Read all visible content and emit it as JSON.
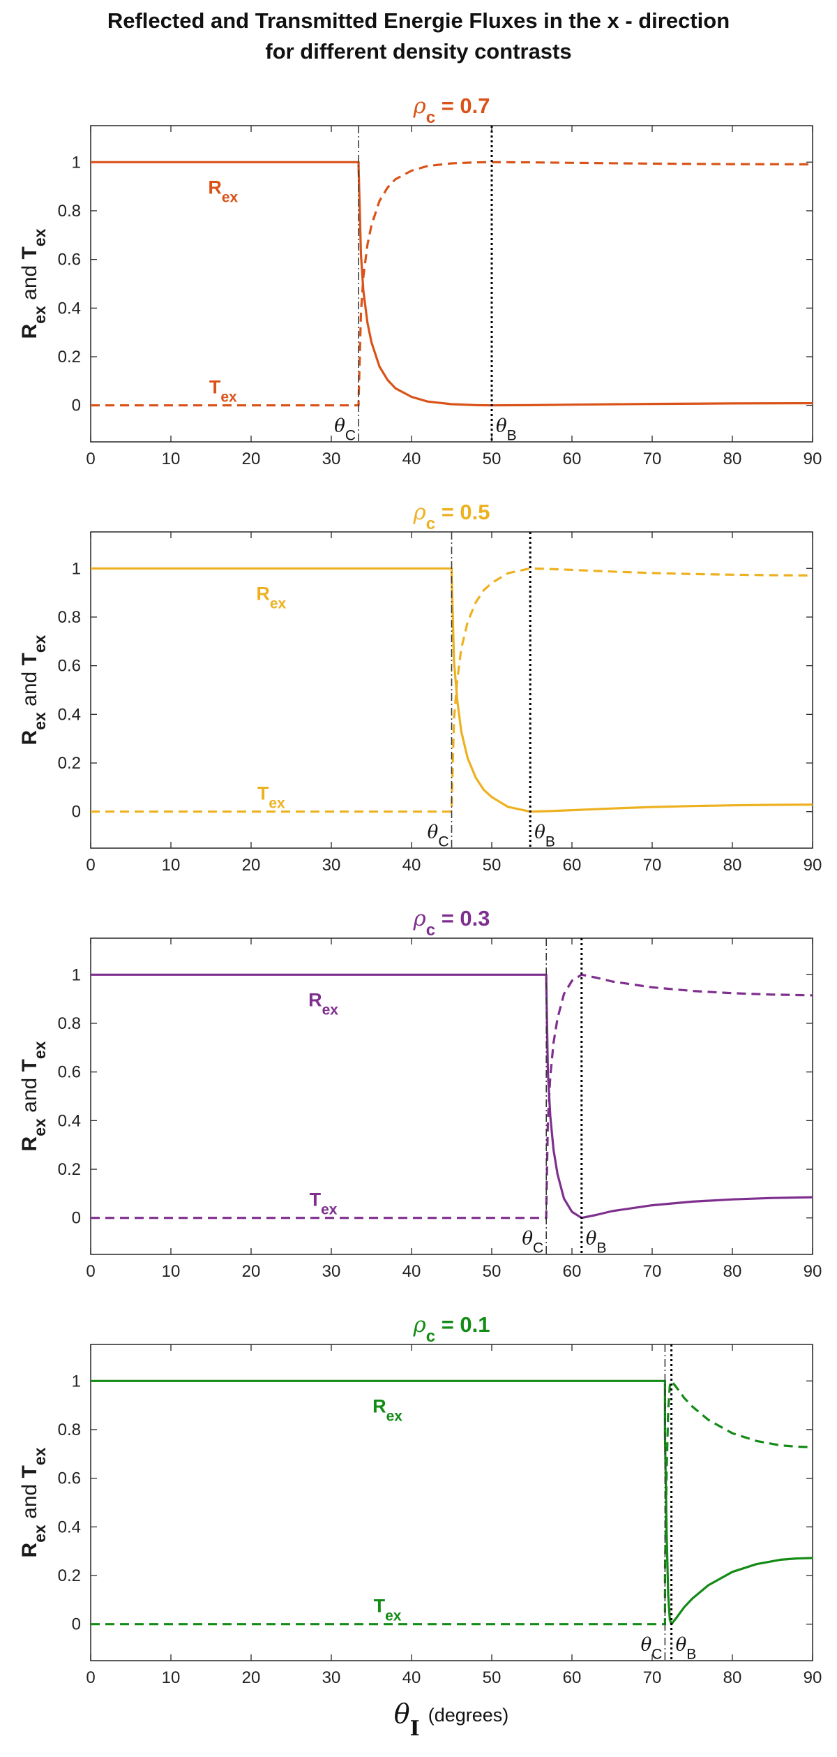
{
  "title_line1": "Reflected and Transmitted Energie Fluxes in the x - direction",
  "title_line2": "for different density contrasts",
  "xlabel_symbol": "θ",
  "xlabel_sub": "I",
  "xlabel_unit": "(degrees)",
  "colors": {
    "axis": "#262626",
    "critical_line": "#3a3a3a",
    "brewster_line": "#000000"
  },
  "chart_data": [
    {
      "type": "line",
      "title_prefix": "ρ",
      "title_sub": "c",
      "title_suffix": " = 0.7",
      "color": "#D95319",
      "xlim": [
        0,
        90
      ],
      "ylim": [
        -0.15,
        1.15
      ],
      "x_ticks": [
        0,
        10,
        20,
        30,
        40,
        50,
        60,
        70,
        80,
        90
      ],
      "y_ticks": [
        0,
        0.2,
        0.4,
        0.6,
        0.8,
        1
      ],
      "y_tick_labels": [
        "0",
        "0.2",
        "0.4",
        "0.6",
        "0.8",
        "1"
      ],
      "ylabel": {
        "r": "R",
        "r_sub": "ex",
        "mid": " and ",
        "t": "T",
        "t_sub": "ex"
      },
      "theta_c": 33.4,
      "theta_b": 50.0,
      "theta_c_label": {
        "sym": "θ",
        "sub": "C"
      },
      "theta_b_label": {
        "sym": "θ",
        "sub": "B"
      },
      "R_label": {
        "text": "R",
        "sub": "ex",
        "x": 16.5,
        "y": 0.87
      },
      "T_label": {
        "text": "T",
        "sub": "ex",
        "x": 16.5,
        "y": 0.05
      },
      "series": [
        {
          "name": "R_ex",
          "style": "solid",
          "x": [
            0,
            33.4,
            33.4,
            33.7,
            34.0,
            34.5,
            35,
            36,
            37,
            38,
            40,
            42,
            45,
            48,
            50,
            55,
            60,
            70,
            80,
            90
          ],
          "y": [
            1,
            1,
            0.98,
            0.62,
            0.47,
            0.34,
            0.26,
            0.16,
            0.105,
            0.07,
            0.035,
            0.016,
            0.005,
            0.001,
            0,
            0.001,
            0.003,
            0.006,
            0.008,
            0.009
          ]
        },
        {
          "name": "T_ex",
          "style": "dashed",
          "x": [
            0,
            33.4,
            33.4,
            33.7,
            34.0,
            34.5,
            35,
            36,
            37,
            38,
            40,
            42,
            45,
            48,
            50,
            55,
            60,
            70,
            80,
            90
          ],
          "y": [
            0,
            0,
            0.02,
            0.38,
            0.53,
            0.66,
            0.74,
            0.84,
            0.895,
            0.93,
            0.965,
            0.984,
            0.995,
            0.999,
            1,
            0.999,
            0.997,
            0.994,
            0.992,
            0.991
          ]
        }
      ]
    },
    {
      "type": "line",
      "title_prefix": "ρ",
      "title_sub": "c",
      "title_suffix": " = 0.5",
      "color": "#EDB120",
      "xlim": [
        0,
        90
      ],
      "ylim": [
        -0.15,
        1.15
      ],
      "x_ticks": [
        0,
        10,
        20,
        30,
        40,
        50,
        60,
        70,
        80,
        90
      ],
      "y_ticks": [
        0,
        0.2,
        0.4,
        0.6,
        0.8,
        1
      ],
      "y_tick_labels": [
        "0",
        "0.2",
        "0.4",
        "0.6",
        "0.8",
        "1"
      ],
      "ylabel": {
        "r": "R",
        "r_sub": "ex",
        "mid": " and ",
        "t": "T",
        "t_sub": "ex"
      },
      "theta_c": 45.0,
      "theta_b": 54.8,
      "theta_c_label": {
        "sym": "θ",
        "sub": "C"
      },
      "theta_b_label": {
        "sym": "θ",
        "sub": "B"
      },
      "R_label": {
        "text": "R",
        "sub": "ex",
        "x": 22.5,
        "y": 0.87
      },
      "T_label": {
        "text": "T",
        "sub": "ex",
        "x": 22.5,
        "y": 0.05
      },
      "series": [
        {
          "name": "R_ex",
          "style": "solid",
          "x": [
            0,
            45.0,
            45.0,
            45.3,
            45.7,
            46.2,
            47,
            48,
            49,
            50,
            52,
            54.8,
            57,
            60,
            65,
            70,
            75,
            80,
            85,
            90
          ],
          "y": [
            1,
            1,
            0.98,
            0.62,
            0.46,
            0.33,
            0.22,
            0.14,
            0.09,
            0.06,
            0.02,
            0,
            0.002,
            0.006,
            0.013,
            0.019,
            0.023,
            0.026,
            0.028,
            0.029
          ]
        },
        {
          "name": "T_ex",
          "style": "dashed",
          "x": [
            0,
            45.0,
            45.0,
            45.3,
            45.7,
            46.2,
            47,
            48,
            49,
            50,
            52,
            54.8,
            57,
            60,
            65,
            70,
            75,
            80,
            85,
            90
          ],
          "y": [
            0,
            0,
            0.02,
            0.38,
            0.54,
            0.67,
            0.78,
            0.86,
            0.91,
            0.94,
            0.98,
            1,
            0.998,
            0.994,
            0.987,
            0.981,
            0.977,
            0.974,
            0.972,
            0.971
          ]
        }
      ]
    },
    {
      "type": "line",
      "title_prefix": "ρ",
      "title_sub": "c",
      "title_suffix": " = 0.3",
      "color": "#7E2F8E",
      "xlim": [
        0,
        90
      ],
      "ylim": [
        -0.15,
        1.15
      ],
      "x_ticks": [
        0,
        10,
        20,
        30,
        40,
        50,
        60,
        70,
        80,
        90
      ],
      "y_ticks": [
        0,
        0.2,
        0.4,
        0.6,
        0.8,
        1
      ],
      "y_tick_labels": [
        "0",
        "0.2",
        "0.4",
        "0.6",
        "0.8",
        "1"
      ],
      "ylabel": {
        "r": "R",
        "r_sub": "ex",
        "mid": " and ",
        "t": "T",
        "t_sub": "ex"
      },
      "theta_c": 56.8,
      "theta_b": 61.2,
      "theta_c_label": {
        "sym": "θ",
        "sub": "C"
      },
      "theta_b_label": {
        "sym": "θ",
        "sub": "B"
      },
      "R_label": {
        "text": "R",
        "sub": "ex",
        "x": 29.0,
        "y": 0.87
      },
      "T_label": {
        "text": "T",
        "sub": "ex",
        "x": 29.0,
        "y": 0.05
      },
      "series": [
        {
          "name": "R_ex",
          "style": "solid",
          "x": [
            0,
            56.8,
            56.8,
            57.0,
            57.3,
            57.7,
            58.2,
            59,
            60,
            61.2,
            63,
            65,
            70,
            75,
            80,
            85,
            90
          ],
          "y": [
            1,
            1,
            0.97,
            0.6,
            0.42,
            0.28,
            0.18,
            0.08,
            0.025,
            0,
            0.012,
            0.028,
            0.052,
            0.067,
            0.076,
            0.082,
            0.085
          ]
        },
        {
          "name": "T_ex",
          "style": "dashed",
          "x": [
            0,
            56.8,
            56.8,
            57.0,
            57.3,
            57.7,
            58.2,
            59,
            60,
            61.2,
            63,
            65,
            70,
            75,
            80,
            85,
            90
          ],
          "y": [
            0,
            0,
            0.03,
            0.4,
            0.58,
            0.72,
            0.82,
            0.92,
            0.975,
            1,
            0.988,
            0.972,
            0.948,
            0.933,
            0.924,
            0.918,
            0.915
          ]
        }
      ]
    },
    {
      "type": "line",
      "title_prefix": "ρ",
      "title_sub": "c",
      "title_suffix": " = 0.1",
      "color": "#138B15",
      "xlim": [
        0,
        90
      ],
      "ylim": [
        -0.15,
        1.15
      ],
      "x_ticks": [
        0,
        10,
        20,
        30,
        40,
        50,
        60,
        70,
        80,
        90
      ],
      "y_ticks": [
        0,
        0.2,
        0.4,
        0.6,
        0.8,
        1
      ],
      "y_tick_labels": [
        "0",
        "0.2",
        "0.4",
        "0.6",
        "0.8",
        "1"
      ],
      "ylabel": {
        "r": "R",
        "r_sub": "ex",
        "mid": " and ",
        "t": "T",
        "t_sub": "ex"
      },
      "theta_c": 71.6,
      "theta_b": 72.4,
      "theta_c_label": {
        "sym": "θ",
        "sub": "C"
      },
      "theta_b_label": {
        "sym": "θ",
        "sub": "B"
      },
      "R_label": {
        "text": "R",
        "sub": "ex",
        "x": 37.0,
        "y": 0.87
      },
      "T_label": {
        "text": "T",
        "sub": "ex",
        "x": 37.0,
        "y": 0.05
      },
      "series": [
        {
          "name": "R_ex",
          "style": "solid",
          "x": [
            0,
            71.6,
            71.6,
            71.8,
            72.0,
            72.2,
            72.4,
            73,
            74,
            75,
            77,
            80,
            83,
            86,
            88,
            90
          ],
          "y": [
            1,
            1,
            0.78,
            0.38,
            0.12,
            0.02,
            0,
            0.025,
            0.07,
            0.105,
            0.16,
            0.215,
            0.247,
            0.265,
            0.27,
            0.272
          ]
        },
        {
          "name": "T_ex",
          "style": "dashed",
          "x": [
            0,
            71.6,
            71.6,
            71.8,
            72.0,
            72.2,
            72.4,
            73,
            74,
            75,
            77,
            80,
            83,
            86,
            88,
            90
          ],
          "y": [
            0,
            0,
            0.22,
            0.62,
            0.88,
            0.98,
            1,
            0.975,
            0.93,
            0.895,
            0.84,
            0.785,
            0.753,
            0.735,
            0.73,
            0.728
          ]
        }
      ]
    }
  ]
}
